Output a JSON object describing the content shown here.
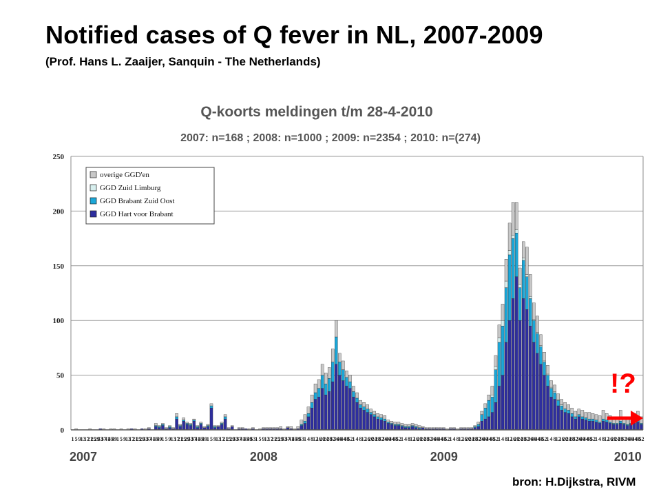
{
  "slide": {
    "title": "Notified cases of Q fever in NL, 2007-2009",
    "subtitle": "(Prof. Hans L. Zaaijer,  Sanquin - The Netherlands)",
    "source": "bron: H.Dijkstra, RIVM",
    "alert_text": "!?"
  },
  "colors": {
    "hart_voor_brabant": "#2e2e9e",
    "brabant_zuid_oost": "#1ba7d8",
    "zuid_limburg": "#d7efee",
    "overige": "#c8c8c8",
    "grid": "#9a9a9a",
    "alert": "#ff0000",
    "chart_title": "#555555"
  },
  "chart_data": {
    "type": "bar",
    "stacked": true,
    "title": "Q-koorts meldingen t/m 28-4-2010",
    "subtitle": "2007: n=168 ; 2008: n=1000 ; 2009: n=2354 ; 2010: n=(274)",
    "xlabel": "",
    "ylabel": "",
    "ylim": [
      0,
      250
    ],
    "yticks": [
      0,
      50,
      100,
      150,
      200,
      250
    ],
    "grid": true,
    "legend_position": "top-left",
    "x_tick_labels": [
      "1",
      "5",
      "9",
      "13",
      "17",
      "21",
      "25",
      "29",
      "33",
      "37",
      "41",
      "45",
      "49",
      "1",
      "5",
      "9",
      "13",
      "17",
      "21",
      "25",
      "29",
      "33",
      "37",
      "41",
      "45",
      "49",
      "1",
      "5",
      "9",
      "13",
      "17",
      "21",
      "25",
      "29",
      "33",
      "37",
      "41",
      "45",
      "49",
      "1",
      "5",
      "9",
      "13",
      "17",
      "21",
      "25",
      "29",
      "33",
      "37",
      "41",
      "45",
      "49",
      "53",
      "1",
      "5",
      "9",
      "13",
      "17",
      "21",
      "25",
      "29",
      "33",
      "37",
      "41",
      "45",
      "49",
      "53",
      "1",
      "4",
      "8",
      "12",
      "16",
      "20",
      "24",
      "28",
      "32",
      "36",
      "40",
      "44",
      "48",
      "52",
      "1",
      "4",
      "8",
      "12",
      "16",
      "20",
      "24",
      "28",
      "32",
      "36",
      "40",
      "44",
      "48",
      "52",
      "1",
      "4",
      "8",
      "12",
      "16",
      "20",
      "24",
      "28",
      "32",
      "36",
      "40",
      "44",
      "48",
      "52",
      "1",
      "4",
      "8",
      "12",
      "16",
      "20",
      "24",
      "28",
      "32",
      "36",
      "40",
      "44",
      "48",
      "52",
      "1",
      "4",
      "8",
      "12",
      "16",
      "20",
      "24",
      "28",
      "32",
      "36",
      "40",
      "44",
      "48",
      "52",
      "1",
      "4",
      "8",
      "12",
      "16",
      "20",
      "24",
      "28",
      "32",
      "36",
      "40",
      "44",
      "48",
      "52",
      "1",
      "4",
      "8",
      "12",
      "16",
      "20",
      "24",
      "28",
      "32",
      "36",
      "40",
      "44",
      "48",
      "52"
    ],
    "year_labels": [
      "2007",
      "2008",
      "2009",
      "2010"
    ],
    "weeks_per_year": [
      52,
      52,
      53,
      17
    ],
    "series": [
      {
        "name": "GGD Hart voor Brabant",
        "color": "#2e2e9e",
        "values": [
          0,
          0,
          0,
          0,
          0,
          0,
          0,
          0,
          1,
          0,
          0,
          0,
          0,
          0,
          0,
          0,
          0,
          1,
          0,
          0,
          1,
          0,
          1,
          0,
          3,
          2,
          4,
          1,
          2,
          1,
          10,
          3,
          8,
          5,
          4,
          8,
          2,
          5,
          2,
          3,
          20,
          2,
          3,
          5,
          10,
          1,
          3,
          0,
          1,
          1,
          1,
          0,
          1,
          0,
          0,
          1,
          1,
          1,
          1,
          1,
          1,
          0,
          2,
          1,
          0,
          1,
          4,
          6,
          12,
          20,
          28,
          30,
          38,
          32,
          35,
          44,
          60,
          50,
          45,
          40,
          38,
          30,
          25,
          20,
          18,
          16,
          14,
          12,
          10,
          9,
          8,
          6,
          5,
          4,
          4,
          3,
          2,
          2,
          3,
          2,
          1,
          2,
          1,
          1,
          1,
          1,
          1,
          1,
          0,
          1,
          1,
          0,
          1,
          1,
          1,
          1,
          2,
          3,
          8,
          10,
          12,
          16,
          25,
          40,
          50,
          80,
          100,
          120,
          140,
          100,
          120,
          110,
          95,
          80,
          70,
          60,
          50,
          40,
          30,
          28,
          22,
          18,
          16,
          15,
          12,
          10,
          12,
          10,
          9,
          8,
          8,
          7,
          6,
          8,
          7,
          6,
          5,
          5,
          6,
          5,
          4,
          5,
          6,
          7,
          5,
          6,
          6,
          5,
          4,
          7,
          5,
          6,
          4,
          5,
          4,
          3,
          4,
          3,
          3
        ]
      },
      {
        "name": "GGD Brabant Zuid Oost",
        "color": "#1ba7d8",
        "values": [
          0,
          0,
          0,
          0,
          0,
          0,
          0,
          0,
          0,
          0,
          0,
          0,
          0,
          0,
          0,
          0,
          0,
          0,
          0,
          0,
          0,
          0,
          0,
          0,
          1,
          1,
          1,
          0,
          1,
          0,
          2,
          1,
          1,
          1,
          1,
          1,
          1,
          1,
          0,
          1,
          2,
          1,
          0,
          1,
          2,
          0,
          0,
          0,
          0,
          0,
          0,
          0,
          0,
          0,
          0,
          0,
          0,
          0,
          0,
          0,
          0,
          0,
          0,
          0,
          0,
          0,
          1,
          2,
          3,
          5,
          6,
          8,
          12,
          10,
          12,
          18,
          25,
          12,
          10,
          8,
          6,
          5,
          4,
          3,
          3,
          3,
          2,
          2,
          2,
          2,
          2,
          1,
          1,
          1,
          1,
          1,
          1,
          1,
          1,
          1,
          1,
          0,
          0,
          0,
          0,
          0,
          0,
          0,
          0,
          0,
          0,
          0,
          0,
          0,
          0,
          0,
          1,
          2,
          6,
          10,
          15,
          14,
          30,
          40,
          45,
          50,
          60,
          55,
          40,
          30,
          35,
          30,
          25,
          20,
          18,
          16,
          12,
          10,
          8,
          6,
          5,
          4,
          3,
          3,
          3,
          2,
          2,
          2,
          2,
          2,
          2,
          2,
          1,
          2,
          2,
          1,
          1,
          1,
          2,
          1,
          1,
          1,
          1,
          2,
          1,
          1,
          1,
          1,
          1,
          1,
          1,
          1,
          1,
          1,
          1,
          1,
          1,
          1,
          1
        ]
      },
      {
        "name": "GGD Zuid Limburg",
        "color": "#d7efee",
        "values": [
          0,
          0,
          0,
          0,
          0,
          0,
          0,
          0,
          0,
          0,
          0,
          0,
          0,
          0,
          0,
          0,
          0,
          0,
          0,
          0,
          0,
          0,
          0,
          0,
          0,
          0,
          0,
          0,
          0,
          0,
          0,
          0,
          0,
          0,
          0,
          0,
          0,
          0,
          0,
          0,
          0,
          0,
          0,
          0,
          0,
          0,
          0,
          0,
          0,
          0,
          0,
          0,
          0,
          0,
          0,
          0,
          0,
          0,
          0,
          0,
          0,
          0,
          0,
          0,
          0,
          0,
          0,
          0,
          0,
          0,
          0,
          0,
          0,
          0,
          0,
          0,
          0,
          0,
          0,
          0,
          0,
          0,
          0,
          0,
          0,
          0,
          0,
          0,
          0,
          0,
          0,
          0,
          0,
          0,
          0,
          0,
          0,
          0,
          0,
          0,
          0,
          0,
          0,
          0,
          0,
          0,
          0,
          0,
          0,
          0,
          0,
          0,
          0,
          0,
          0,
          0,
          0,
          0,
          0,
          0,
          0,
          2,
          3,
          4,
          5,
          6,
          4,
          3,
          3,
          3,
          2,
          2,
          2,
          1,
          1,
          1,
          1,
          1,
          1,
          1,
          1,
          1,
          1,
          0,
          0,
          0,
          0,
          0,
          0,
          0,
          0,
          0,
          0,
          0,
          0,
          0,
          0,
          0,
          0,
          0,
          0,
          0,
          0,
          0,
          0,
          0,
          0,
          0,
          0,
          0,
          0,
          0,
          0,
          0,
          0,
          0,
          0
        ]
      },
      {
        "name": "overige GGD'en",
        "color": "#c8c8c8",
        "values": [
          0,
          1,
          0,
          0,
          0,
          1,
          0,
          0,
          0,
          1,
          0,
          1,
          1,
          0,
          1,
          0,
          1,
          0,
          1,
          0,
          0,
          1,
          1,
          0,
          2,
          1,
          1,
          1,
          1,
          1,
          3,
          1,
          2,
          1,
          1,
          1,
          1,
          1,
          1,
          1,
          2,
          1,
          1,
          1,
          2,
          1,
          1,
          0,
          1,
          1,
          0,
          1,
          1,
          0,
          1,
          1,
          1,
          1,
          1,
          1,
          2,
          1,
          1,
          2,
          1,
          2,
          4,
          6,
          6,
          7,
          8,
          8,
          10,
          10,
          10,
          12,
          15,
          8,
          8,
          6,
          6,
          5,
          5,
          4,
          4,
          4,
          3,
          3,
          3,
          3,
          3,
          2,
          2,
          2,
          2,
          2,
          2,
          2,
          2,
          2,
          2,
          1,
          1,
          1,
          1,
          1,
          1,
          1,
          1,
          1,
          1,
          1,
          1,
          1,
          1,
          1,
          1,
          2,
          3,
          4,
          5,
          8,
          10,
          12,
          15,
          20,
          25,
          30,
          25,
          15,
          15,
          25,
          20,
          15,
          15,
          10,
          8,
          8,
          6,
          6,
          5,
          5,
          5,
          5,
          5,
          5,
          5,
          6,
          5,
          6,
          5,
          5,
          6,
          8,
          6,
          6,
          6,
          5,
          10,
          6,
          6,
          6,
          8,
          8,
          6,
          8,
          8,
          6,
          6,
          8,
          6,
          8,
          6,
          7,
          6,
          5,
          8,
          8,
          4
        ]
      }
    ]
  }
}
